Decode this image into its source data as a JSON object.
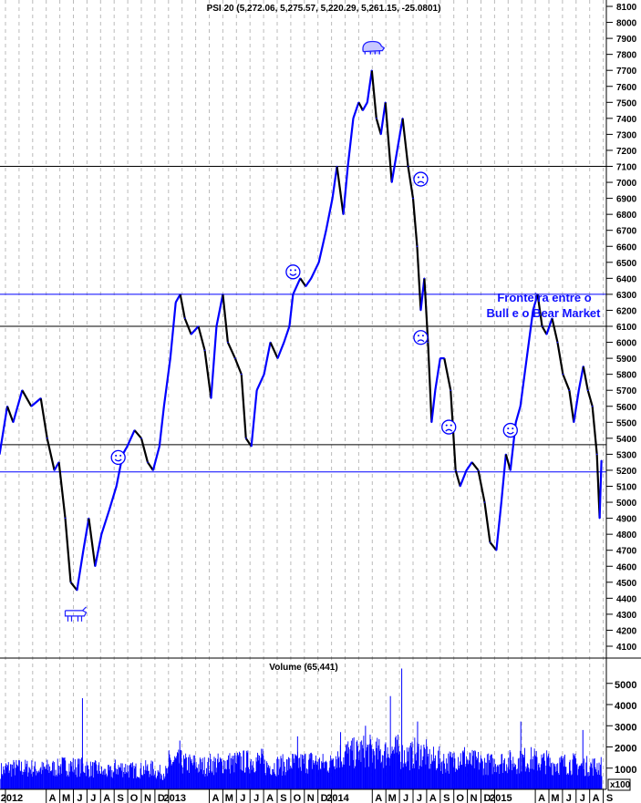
{
  "chart_data": {
    "type": "line",
    "title": "PSI 20 (5,272.06, 5,275.57, 5,220.29, 5,261.15, -25.0801)",
    "y_ticks": [
      4100,
      4200,
      4300,
      4400,
      4500,
      4600,
      4700,
      4800,
      4900,
      5000,
      5100,
      5200,
      5300,
      5400,
      5500,
      5600,
      5700,
      5800,
      5900,
      6000,
      6100,
      6200,
      6300,
      6400,
      6500,
      6600,
      6700,
      6800,
      6900,
      7000,
      7100,
      7200,
      7300,
      7400,
      7500,
      7600,
      7700,
      7800,
      7900,
      8000,
      8100
    ],
    "ylim": [
      4040,
      8130
    ],
    "grid": "vertical dashed monthly",
    "x_labels": [
      {
        "label": "2012",
        "date": "2012-01"
      },
      {
        "label": "A",
        "date": "2012-04"
      },
      {
        "label": "M",
        "date": "2012-05"
      },
      {
        "label": "J",
        "date": "2012-06"
      },
      {
        "label": "J",
        "date": "2012-07"
      },
      {
        "label": "A",
        "date": "2012-08"
      },
      {
        "label": "S",
        "date": "2012-09"
      },
      {
        "label": "O",
        "date": "2012-10"
      },
      {
        "label": "N",
        "date": "2012-11"
      },
      {
        "label": "D",
        "date": "2012-12"
      },
      {
        "label": "2013",
        "date": "2013-01"
      },
      {
        "label": "A",
        "date": "2013-04"
      },
      {
        "label": "M",
        "date": "2013-05"
      },
      {
        "label": "J",
        "date": "2013-06"
      },
      {
        "label": "J",
        "date": "2013-07"
      },
      {
        "label": "A",
        "date": "2013-08"
      },
      {
        "label": "S",
        "date": "2013-09"
      },
      {
        "label": "O",
        "date": "2013-10"
      },
      {
        "label": "N",
        "date": "2013-11"
      },
      {
        "label": "D",
        "date": "2013-12"
      },
      {
        "label": "2014",
        "date": "2014-01"
      },
      {
        "label": "A",
        "date": "2014-04"
      },
      {
        "label": "M",
        "date": "2014-05"
      },
      {
        "label": "J",
        "date": "2014-06"
      },
      {
        "label": "J",
        "date": "2014-07"
      },
      {
        "label": "A",
        "date": "2014-08"
      },
      {
        "label": "S",
        "date": "2014-09"
      },
      {
        "label": "O",
        "date": "2014-10"
      },
      {
        "label": "N",
        "date": "2014-11"
      },
      {
        "label": "D",
        "date": "2014-12"
      },
      {
        "label": "2015",
        "date": "2015-01"
      },
      {
        "label": "A",
        "date": "2015-04"
      },
      {
        "label": "M",
        "date": "2015-05"
      },
      {
        "label": "J",
        "date": "2015-06"
      },
      {
        "label": "J",
        "date": "2015-07"
      },
      {
        "label": "A",
        "date": "2015-08"
      },
      {
        "label": "S",
        "date": "2015-09"
      }
    ],
    "series": [
      {
        "points": [
          [
            "2011-12-18",
            5300
          ],
          [
            "2012-01-05",
            5600
          ],
          [
            "2012-01-18",
            5500
          ],
          [
            "2012-02-08",
            5700
          ],
          [
            "2012-02-28",
            5600
          ],
          [
            "2012-03-19",
            5650
          ],
          [
            "2012-04-03",
            5400
          ],
          [
            "2012-04-19",
            5200
          ],
          [
            "2012-04-29",
            5250
          ],
          [
            "2012-05-13",
            4900
          ],
          [
            "2012-05-25",
            4500
          ],
          [
            "2012-06-09",
            4450
          ],
          [
            "2012-06-23",
            4700
          ],
          [
            "2012-07-05",
            4900
          ],
          [
            "2012-07-19",
            4600
          ],
          [
            "2012-08-03",
            4800
          ],
          [
            "2012-08-20",
            4950
          ],
          [
            "2012-09-06",
            5100
          ],
          [
            "2012-09-20",
            5300
          ],
          [
            "2012-09-30",
            5350
          ],
          [
            "2012-10-16",
            5450
          ],
          [
            "2012-11-01",
            5400
          ],
          [
            "2012-11-15",
            5250
          ],
          [
            "2012-11-27",
            5200
          ],
          [
            "2012-12-11",
            5350
          ],
          [
            "2012-12-21",
            5600
          ],
          [
            "2013-01-05",
            5900
          ],
          [
            "2013-01-17",
            6250
          ],
          [
            "2013-01-27",
            6300
          ],
          [
            "2013-02-07",
            6150
          ],
          [
            "2013-02-21",
            6050
          ],
          [
            "2013-03-07",
            6100
          ],
          [
            "2013-03-21",
            5950
          ],
          [
            "2013-04-05",
            5650
          ],
          [
            "2013-04-17",
            6100
          ],
          [
            "2013-05-01",
            6300
          ],
          [
            "2013-05-12",
            6000
          ],
          [
            "2013-05-28",
            5900
          ],
          [
            "2013-06-12",
            5800
          ],
          [
            "2013-06-22",
            5400
          ],
          [
            "2013-07-04",
            5350
          ],
          [
            "2013-07-16",
            5700
          ],
          [
            "2013-08-02",
            5800
          ],
          [
            "2013-08-16",
            6000
          ],
          [
            "2013-09-02",
            5900
          ],
          [
            "2013-09-16",
            6000
          ],
          [
            "2013-09-28",
            6100
          ],
          [
            "2013-10-06",
            6300
          ],
          [
            "2013-10-22",
            6400
          ],
          [
            "2013-11-04",
            6350
          ],
          [
            "2013-11-16",
            6400
          ],
          [
            "2013-12-03",
            6500
          ],
          [
            "2013-12-19",
            6700
          ],
          [
            "2014-01-03",
            6900
          ],
          [
            "2014-01-13",
            7100
          ],
          [
            "2014-01-27",
            6800
          ],
          [
            "2014-02-07",
            7100
          ],
          [
            "2014-02-19",
            7400
          ],
          [
            "2014-03-01",
            7500
          ],
          [
            "2014-03-10",
            7450
          ],
          [
            "2014-03-20",
            7500
          ],
          [
            "2014-03-30",
            7700
          ],
          [
            "2014-04-10",
            7400
          ],
          [
            "2014-04-20",
            7300
          ],
          [
            "2014-04-30",
            7500
          ],
          [
            "2014-05-14",
            7000
          ],
          [
            "2014-05-26",
            7200
          ],
          [
            "2014-06-08",
            7400
          ],
          [
            "2014-06-20",
            7100
          ],
          [
            "2014-07-01",
            6900
          ],
          [
            "2014-07-10",
            6600
          ],
          [
            "2014-07-18",
            6200
          ],
          [
            "2014-07-26",
            6400
          ],
          [
            "2014-08-04",
            6000
          ],
          [
            "2014-08-12",
            5500
          ],
          [
            "2014-08-20",
            5700
          ],
          [
            "2014-09-01",
            5900
          ],
          [
            "2014-09-10",
            5900
          ],
          [
            "2014-09-24",
            5700
          ],
          [
            "2014-10-05",
            5200
          ],
          [
            "2014-10-15",
            5100
          ],
          [
            "2014-10-29",
            5200
          ],
          [
            "2014-11-11",
            5250
          ],
          [
            "2014-11-25",
            5200
          ],
          [
            "2014-12-09",
            5000
          ],
          [
            "2014-12-21",
            4750
          ],
          [
            "2015-01-05",
            4700
          ],
          [
            "2015-01-16",
            5000
          ],
          [
            "2015-01-26",
            5300
          ],
          [
            "2015-02-06",
            5200
          ],
          [
            "2015-02-18",
            5500
          ],
          [
            "2015-02-28",
            5600
          ],
          [
            "2015-03-12",
            5900
          ],
          [
            "2015-03-26",
            6200
          ],
          [
            "2015-04-06",
            6300
          ],
          [
            "2015-04-16",
            6100
          ],
          [
            "2015-04-26",
            6050
          ],
          [
            "2015-05-08",
            6150
          ],
          [
            "2015-05-20",
            6000
          ],
          [
            "2015-06-02",
            5800
          ],
          [
            "2015-06-16",
            5700
          ],
          [
            "2015-06-26",
            5500
          ],
          [
            "2015-07-07",
            5700
          ],
          [
            "2015-07-17",
            5850
          ],
          [
            "2015-07-27",
            5700
          ],
          [
            "2015-08-07",
            5600
          ],
          [
            "2015-08-17",
            5300
          ],
          [
            "2015-08-23",
            4900
          ],
          [
            "2015-08-27",
            5261
          ]
        ]
      }
    ],
    "horizontal_lines": [
      {
        "value": 7100,
        "color": "#000000"
      },
      {
        "value": 6300,
        "color": "#0000ff"
      },
      {
        "value": 6100,
        "color": "#000000"
      },
      {
        "value": 5360,
        "color": "#000000"
      },
      {
        "value": 5190,
        "color": "#0000ff"
      }
    ],
    "annotations": {
      "text_line1": "Fronteira entre o",
      "text_line2": "Bull e o Bear Market",
      "markers": [
        {
          "icon": "smiley-icon",
          "date": "2012-09-10",
          "value": 5280
        },
        {
          "icon": "smiley-icon",
          "date": "2013-10-06",
          "value": 6440
        },
        {
          "icon": "smiley-icon",
          "date": "2015-02-06",
          "value": 5450
        },
        {
          "icon": "frown-icon",
          "date": "2014-07-18",
          "value": 7020
        },
        {
          "icon": "frown-icon",
          "date": "2014-07-18",
          "value": 6030
        },
        {
          "icon": "frown-icon",
          "date": "2014-09-20",
          "value": 5470
        },
        {
          "icon": "bull-icon",
          "date": "2012-06-05",
          "value": 4300
        },
        {
          "icon": "bear-icon",
          "date": "2014-04-01",
          "value": 7840
        }
      ]
    },
    "volume": {
      "title": "Volume (65,441)",
      "unit_label": "x100",
      "y_ticks": [
        1000,
        2000,
        3000,
        4000,
        5000
      ],
      "ylim": [
        0,
        6200
      ],
      "color": "#0000ff",
      "monthly_level": [
        [
          "2011-12",
          900
        ],
        [
          "2012-01",
          1000
        ],
        [
          "2012-02",
          1000
        ],
        [
          "2012-03",
          950
        ],
        [
          "2012-04",
          1000
        ],
        [
          "2012-05",
          1100
        ],
        [
          "2012-06",
          1050
        ],
        [
          "2012-07",
          950
        ],
        [
          "2012-08",
          800
        ],
        [
          "2012-09",
          1000
        ],
        [
          "2012-10",
          900
        ],
        [
          "2012-11",
          950
        ],
        [
          "2012-12",
          800
        ],
        [
          "2013-01",
          1300
        ],
        [
          "2013-02",
          1200
        ],
        [
          "2013-03",
          1100
        ],
        [
          "2013-04",
          1200
        ],
        [
          "2013-05",
          1250
        ],
        [
          "2013-06",
          1300
        ],
        [
          "2013-07",
          1350
        ],
        [
          "2013-08",
          1100
        ],
        [
          "2013-09",
          1150
        ],
        [
          "2013-10",
          1250
        ],
        [
          "2013-11",
          1300
        ],
        [
          "2013-12",
          1200
        ],
        [
          "2014-01",
          1600
        ],
        [
          "2014-02",
          1700
        ],
        [
          "2014-03",
          1800
        ],
        [
          "2014-04",
          1700
        ],
        [
          "2014-05",
          1800
        ],
        [
          "2014-06",
          1600
        ],
        [
          "2014-07",
          1700
        ],
        [
          "2014-08",
          1400
        ],
        [
          "2014-09",
          1300
        ],
        [
          "2014-10",
          1500
        ],
        [
          "2014-11",
          1300
        ],
        [
          "2014-12",
          1200
        ],
        [
          "2015-01",
          1300
        ],
        [
          "2015-02",
          1300
        ],
        [
          "2015-03",
          1400
        ],
        [
          "2015-04",
          1300
        ],
        [
          "2015-05",
          1200
        ],
        [
          "2015-06",
          1200
        ],
        [
          "2015-07",
          1100
        ],
        [
          "2015-08",
          1100
        ]
      ],
      "spikes": [
        [
          "2012-06-20",
          4300
        ],
        [
          "2013-01-25",
          2300
        ],
        [
          "2013-10-15",
          2500
        ],
        [
          "2014-01-20",
          2700
        ],
        [
          "2014-03-15",
          3000
        ],
        [
          "2014-05-10",
          4400
        ],
        [
          "2014-06-05",
          5700
        ],
        [
          "2014-07-10",
          3200
        ],
        [
          "2015-02-28",
          3200
        ],
        [
          "2015-07-15",
          2800
        ]
      ]
    }
  }
}
